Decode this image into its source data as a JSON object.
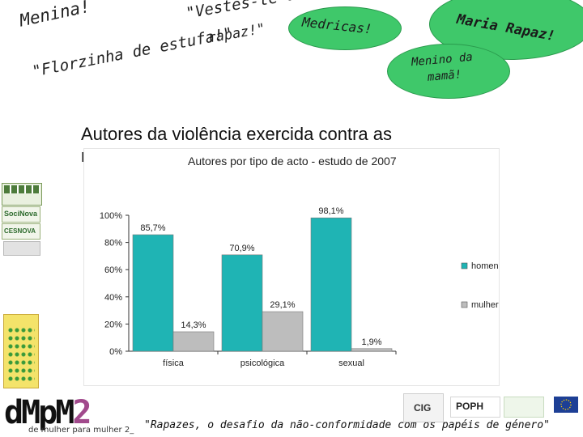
{
  "quotes": {
    "menina": "Menina!",
    "vestes": "\"Vestes-te à",
    "vestes2": "rapaz!\"",
    "florzinha": "\"Florzinha de estufa!\"",
    "medricas": "Medricas!",
    "maria": "Maria Rapaz!",
    "menino1": "Menino da",
    "menino2": "mamã!"
  },
  "heading": {
    "line1": "Autores da violência exercida contra as",
    "line2": "mulheres"
  },
  "footer": {
    "quote": "\"Rapazes, o desafio da não-conformidade com os papéis de género\"",
    "brand_d": "dMpM",
    "brand_2": "2",
    "brand_sub": "de mulher para mulher 2_"
  },
  "logos": {
    "socinova": "SociNova",
    "cesnova": "CESNOVA",
    "cig": "CIG",
    "poph": "POPH"
  },
  "colors": {
    "homens": "#1fb4b4",
    "mulheres": "#bdbdbd",
    "bubble": "#3fc86a"
  },
  "chart_data": {
    "type": "bar",
    "title": "Autores por tipo de acto - estudo de 2007",
    "categories": [
      "física",
      "psicológica",
      "sexual"
    ],
    "series": [
      {
        "name": "homens",
        "values": [
          85.7,
          70.9,
          98.1
        ],
        "labels": [
          "85,7%",
          "70,9%",
          "98,1%"
        ]
      },
      {
        "name": "mulheres",
        "values": [
          14.3,
          29.1,
          1.9
        ],
        "labels": [
          "14,3%",
          "29,1%",
          "1,9%"
        ]
      }
    ],
    "yticks": [
      "0%",
      "20%",
      "40%",
      "60%",
      "80%",
      "100%"
    ],
    "ylim": [
      0,
      100
    ],
    "legend_position": "right",
    "grid": false
  }
}
